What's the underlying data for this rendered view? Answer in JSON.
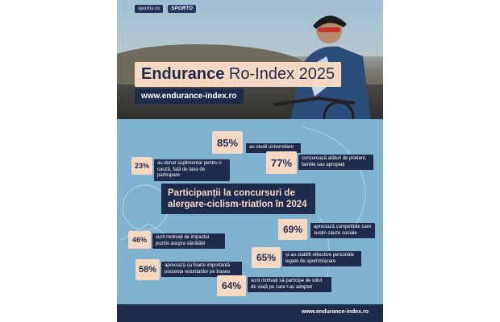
{
  "header": {
    "logos": [
      "sportiv.ro",
      "SPORTO"
    ],
    "title_bold": "Endurance",
    "title_rest": " Ro-Index 2025",
    "url": "www.endurance-index.ro"
  },
  "headline": "Participanții la concursuri de alergare-ciclism-triatlon în 2024",
  "stats": [
    {
      "value": "85%",
      "text": "au studii universitare"
    },
    {
      "value": "23%",
      "text": "au donat suplimentar pentru o cauză, față de taxa de participare"
    },
    {
      "value": "77%",
      "text": "concurează alături de prieteni, familie sau apropiați"
    },
    {
      "value": "69%",
      "text": "apreciază competițiile care susțin cauze sociale"
    },
    {
      "value": "46%",
      "text": "sunt motivați de impactul pozitiv asupra sănătății"
    },
    {
      "value": "65%",
      "text": "și-au stabilit obiective personale legate de sport/mișcare"
    },
    {
      "value": "58%",
      "text": "apreciază ca foarte importantă prezența voluntarilor pe traseu"
    },
    {
      "value": "64%",
      "text": "sunt motivați să participe de stilul de viață pe care l-au adoptat"
    }
  ],
  "footer": {
    "url": "www.endurance-index.ro"
  },
  "colors": {
    "navy": "#1f2b4d",
    "peach": "#f6d7c1",
    "background": "#7fb2cf"
  }
}
